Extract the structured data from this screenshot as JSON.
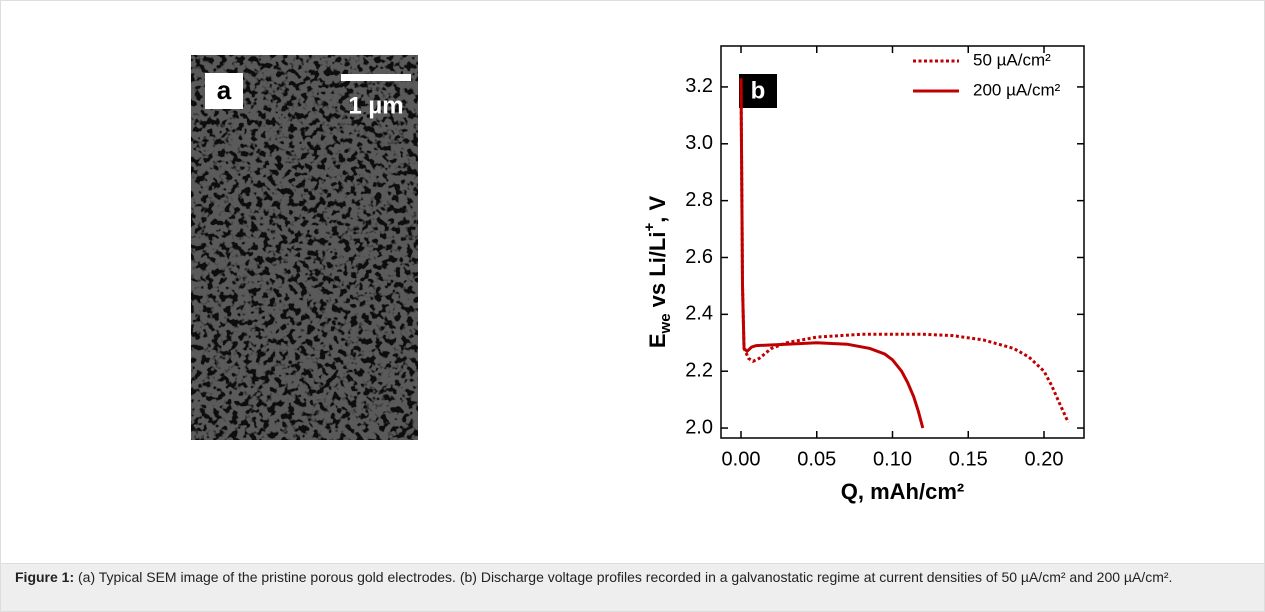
{
  "panel_a": {
    "label": "a",
    "scale_bar": "1 µm"
  },
  "chart_data": {
    "type": "line",
    "panel_label": "b",
    "x_label": "Q, mAh/cm²",
    "y_label": {
      "main": "E",
      "sub": "we",
      "rest": " vs  Li/Li",
      "sup": "+",
      "end": ", V"
    },
    "xlim": [
      -0.0132,
      0.2264
    ],
    "ylim": [
      1.965,
      3.344
    ],
    "xticks": [
      {
        "value": 0,
        "label": "0.00"
      },
      0.05,
      {
        "value": 0.1,
        "label": "0.10"
      },
      0.15,
      {
        "value": 0.2,
        "label": "0.20"
      }
    ],
    "yticks": [
      {
        "value": 2,
        "label": "2.0"
      },
      2.2,
      2.4,
      2.6,
      2.8,
      {
        "value": 3,
        "label": "3.0"
      },
      3.2
    ],
    "legend": "upper right",
    "series": [
      {
        "name": "50 µA/cm²",
        "color": "#c00000",
        "style": "dotted",
        "x": [
          0,
          0.001,
          0.002,
          0.005,
          0.008,
          0.012,
          0.02,
          0.03,
          0.05,
          0.08,
          0.12,
          0.14,
          0.16,
          0.18,
          0.19,
          0.2,
          0.205,
          0.21,
          0.216
        ],
        "values": [
          3.23,
          2.5,
          2.28,
          2.245,
          2.235,
          2.245,
          2.28,
          2.3,
          2.32,
          2.33,
          2.33,
          2.325,
          2.31,
          2.28,
          2.25,
          2.2,
          2.15,
          2.09,
          2.02
        ]
      },
      {
        "name": "200 µA/cm²",
        "color": "#c00000",
        "style": "solid",
        "x": [
          0,
          0.001,
          0.002,
          0.004,
          0.007,
          0.01,
          0.03,
          0.05,
          0.07,
          0.085,
          0.095,
          0.1,
          0.106,
          0.11,
          0.114,
          0.117,
          0.12
        ],
        "values": [
          3.23,
          2.5,
          2.28,
          2.27,
          2.285,
          2.29,
          2.295,
          2.3,
          2.295,
          2.28,
          2.26,
          2.24,
          2.2,
          2.16,
          2.11,
          2.06,
          2.0
        ]
      }
    ]
  },
  "caption": {
    "label": "Figure 1:",
    "text": "(a) Typical SEM image of the pristine porous gold electrodes. (b) Discharge voltage profiles recorded in a galvanostatic regime at current densities of 50 µA/cm² and 200 µA/cm²."
  }
}
